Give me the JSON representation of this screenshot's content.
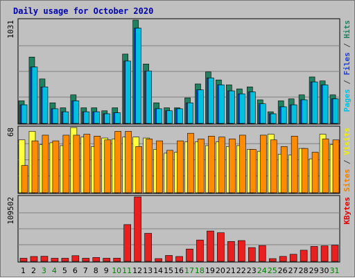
{
  "chart_data": {
    "type": "bar",
    "title": "Daily usage for October 2020",
    "categories": [
      "1",
      "2",
      "3",
      "4",
      "5",
      "6",
      "7",
      "8",
      "9",
      "10",
      "11",
      "12",
      "13",
      "14",
      "15",
      "16",
      "17",
      "18",
      "19",
      "20",
      "21",
      "22",
      "23",
      "24",
      "25",
      "26",
      "27",
      "28",
      "29",
      "30",
      "31"
    ],
    "weekend_days": [
      "3",
      "4",
      "10",
      "11",
      "17",
      "18",
      "24",
      "25",
      "31"
    ],
    "panels": [
      {
        "name": "top",
        "max_label": "1031",
        "ymax": 1031,
        "legend": [
          {
            "text": "Pages",
            "color": "#00c0e0"
          },
          {
            "text": " / ",
            "color": "#404040"
          },
          {
            "text": "Files",
            "color": "#2040d0"
          },
          {
            "text": " / ",
            "color": "#404040"
          },
          {
            "text": "Hits",
            "color": "#208060"
          }
        ],
        "series": [
          {
            "name": "Hits",
            "color": "#208060",
            "values": [
              220,
              660,
              440,
              200,
              150,
              280,
              150,
              150,
              120,
              150,
              690,
              1031,
              590,
              200,
              150,
              150,
              250,
              390,
              510,
              430,
              380,
              340,
              360,
              230,
              110,
              220,
              240,
              280,
              460,
              420,
              280
            ]
          },
          {
            "name": "Files",
            "color": "#2040d0",
            "values": [
              180,
              560,
              360,
              140,
              110,
              220,
              110,
              110,
              90,
              100,
              620,
              950,
              520,
              140,
              120,
              140,
              200,
              330,
              450,
              380,
              320,
              290,
              310,
              190,
              90,
              160,
              180,
              230,
              410,
              380,
              240
            ]
          },
          {
            "name": "Pages",
            "color": "#00c0e0",
            "values": [
              180,
              560,
              360,
              140,
              110,
              220,
              110,
              110,
              90,
              100,
              620,
              950,
              520,
              140,
              120,
              140,
              200,
              330,
              450,
              380,
              320,
              290,
              310,
              190,
              90,
              160,
              180,
              230,
              410,
              380,
              240
            ]
          }
        ]
      },
      {
        "name": "middle",
        "max_label": "68",
        "ymax": 68,
        "legend": [
          {
            "text": "Sites",
            "color": "#f08000"
          },
          {
            "text": " / ",
            "color": "#404040"
          },
          {
            "text": "Visits",
            "color": "#f0f000"
          }
        ],
        "series": [
          {
            "name": "Visits",
            "color": "#ffff40",
            "values": [
              55,
              64,
              50,
              52,
              49,
              68,
              58,
              48,
              57,
              56,
              58,
              58,
              57,
              45,
              41,
              42,
              53,
              53,
              49,
              53,
              48,
              49,
              45,
              43,
              61,
              40,
              39,
              46,
              35,
              61,
              50
            ]
          },
          {
            "name": "Sites",
            "color": "#ff8c00",
            "values": [
              28,
              54,
              60,
              54,
              60,
              60,
              61,
              59,
              55,
              64,
              64,
              48,
              56,
              54,
              44,
              54,
              62,
              56,
              59,
              58,
              56,
              60,
              45,
              60,
              55,
              48,
              59,
              46,
              42,
              56,
              55
            ]
          }
        ]
      },
      {
        "name": "bottom",
        "max_label": "109502",
        "ymax": 109502,
        "legend": [
          {
            "text": "KBytes",
            "color": "#e00000"
          }
        ],
        "series": [
          {
            "name": "KBytes",
            "color": "#e82020",
            "values": [
              4200,
              7200,
              7600,
              4200,
              4200,
              8600,
              4200,
              5500,
              4200,
              4300,
              62000,
              109502,
              47000,
              3600,
              9000,
              7200,
              20000,
              35500,
              51000,
              48000,
              33000,
              34500,
              22500,
              26000,
              3000,
              7400,
              11000,
              18000,
              24500,
              25500,
              26500
            ]
          }
        ]
      }
    ]
  }
}
